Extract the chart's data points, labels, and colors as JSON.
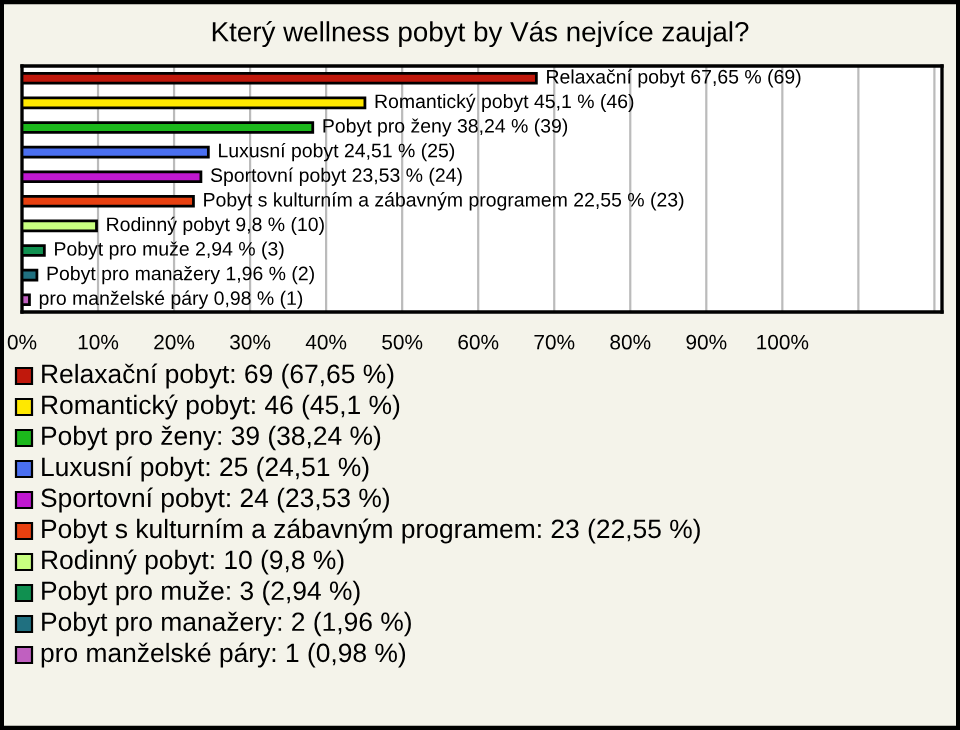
{
  "chart_data": {
    "type": "bar",
    "orientation": "horizontal",
    "title": "Který wellness pobyt by Vás nejvíce zaujal?",
    "categories": [
      null,
      null,
      null,
      null,
      null,
      null,
      null,
      null,
      null,
      null
    ],
    "values": [
      67.65,
      45.1,
      38.24,
      24.51,
      23.53,
      22.55,
      9.8,
      2.94,
      1.96,
      0.98
    ],
    "colors": [
      "#c0180c",
      "#ffe800",
      "#1cb81c",
      "#4a6ff0",
      "#c018d0",
      "#e84010",
      "#c8ff80",
      "#109050",
      "#207080",
      "#c060c0"
    ],
    "value_labels": [
      "Relaxační pobyt 67,65 % (69)",
      "Romantický pobyt 45,1 % (46)",
      "Pobyt pro ženy 38,24 % (39)",
      "Luxusní pobyt 24,51 % (25)",
      "Sportovní pobyt 23,53 % (24)",
      "Pobyt s kulturním a zábavným programem 22,55 % (23)",
      "Rodinný pobyt 9,8 % (10)",
      "Pobyt pro muže 2,94 % (3)",
      "Pobyt pro manažery 1,96 % (2)",
      "pro manželské páry 0,98 % (1)"
    ],
    "xlim": [
      0,
      121
    ],
    "xticks": [
      {
        "value": 0,
        "label": "0%"
      },
      {
        "value": 10,
        "label": "10%"
      },
      {
        "value": 20,
        "label": "20%"
      },
      {
        "value": 30,
        "label": "30%"
      },
      {
        "value": 40,
        "label": "40%"
      },
      {
        "value": 50,
        "label": "50%"
      },
      {
        "value": 60,
        "label": "60%"
      },
      {
        "value": 70,
        "label": "70%"
      },
      {
        "value": 80,
        "label": "80%"
      },
      {
        "value": 90,
        "label": "90%"
      },
      {
        "value": 100,
        "label": "100%"
      },
      {
        "value": 110,
        "label": null
      },
      {
        "value": 120,
        "label": null
      }
    ],
    "grid": "x",
    "annotations": [
      "Relaxační pobyt: 69 (67,65 %)",
      "Romantický pobyt: 46 (45,1 %)",
      "Pobyt pro ženy: 39 (38,24 %)",
      "Luxusní pobyt: 25 (24,51 %)",
      "Sportovní pobyt: 24 (23,53 %)",
      "Pobyt s kulturním a zábavným programem: 23 (22,55 %)",
      "Rodinný pobyt: 10 (9,8 %)",
      "Pobyt pro muže: 3 (2,94 %)",
      "Pobyt pro manažery: 2 (1,96 %)",
      "pro manželské páry: 1 (0,98 %)"
    ]
  }
}
